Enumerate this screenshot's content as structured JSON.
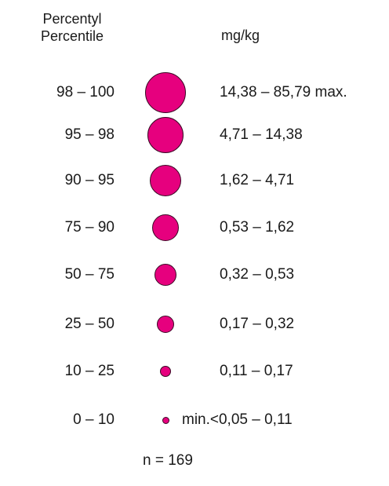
{
  "chart_data": {
    "type": "legend",
    "header": {
      "percentile_label_line1": "Percentyl",
      "percentile_label_line2": "Percentile",
      "unit": "mg/kg"
    },
    "marker_color": "#e6007e",
    "classes": [
      {
        "percentile": "98 – 100",
        "range": "14,38 – 85,79 max."
      },
      {
        "percentile": "95 – 98",
        "range": "4,71 – 14,38"
      },
      {
        "percentile": "90 – 95",
        "range": "1,62 – 4,71"
      },
      {
        "percentile": "75 – 90",
        "range": "0,53 – 1,62"
      },
      {
        "percentile": "50 – 75",
        "range": "0,32 – 0,53"
      },
      {
        "percentile": "25 – 50",
        "range": "0,17 – 0,32"
      },
      {
        "percentile": "10 – 25",
        "range": "0,11 – 0,17"
      },
      {
        "percentile": "0 – 10",
        "range": "min.<0,05 – 0,11"
      }
    ],
    "footer": "n = 169"
  }
}
